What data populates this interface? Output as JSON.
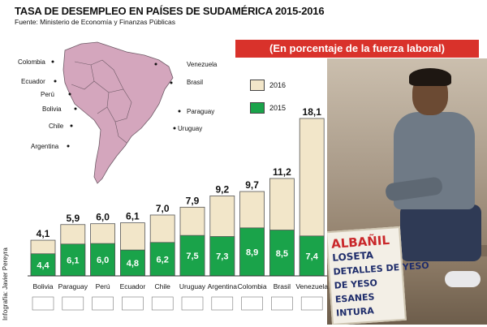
{
  "header": {
    "title": "TASA DE DESEMPLEO EN PAÍSES DE SUDAMÉRICA 2015-2016",
    "source": "Fuente: Ministerio de Economía y Finanzas Públicas",
    "credit": "Infografía: Javier Pereyra"
  },
  "subtitle": "(En porcentaje de la fuerza laboral)",
  "map": {
    "labels": [
      "Colombia",
      "Venezuela",
      "Ecuador",
      "Brasil",
      "Perú",
      "Paraguay",
      "Bolivia",
      "Uruguay",
      "Chile",
      "Argentina"
    ]
  },
  "photo": {
    "sign_lines": [
      "ALBAÑIL",
      "LOSETA",
      "DETALLES DE YESO",
      "DE YESO",
      "ESANES",
      "INTURA"
    ]
  },
  "colors": {
    "y2016": "#f2e6c9",
    "y2015": "#1aa34a",
    "accent": "#d9322b"
  },
  "chart_data": {
    "type": "bar",
    "title": "TASA DE DESEMPLEO EN PAÍSES DE SUDAMÉRICA 2015-2016",
    "subtitle": "(En porcentaje de la fuerza laboral)",
    "categories": [
      "Bolivia",
      "Paraguay",
      "Perú",
      "Ecuador",
      "Chile",
      "Uruguay",
      "Argentina",
      "Colombia",
      "Brasil",
      "Venezuela"
    ],
    "series": [
      {
        "name": "2016",
        "values": [
          4.1,
          5.9,
          6.0,
          6.1,
          7.0,
          7.9,
          9.2,
          9.7,
          11.2,
          18.1
        ],
        "labels": [
          "4,1",
          "5,9",
          "6,0",
          "6,1",
          "7,0",
          "7,9",
          "9,2",
          "9,7",
          "11,2",
          "18,1"
        ]
      },
      {
        "name": "2015",
        "values": [
          4.4,
          6.1,
          6.0,
          4.8,
          6.2,
          7.5,
          7.3,
          8.9,
          8.5,
          7.4
        ],
        "labels": [
          "4,4",
          "6,1",
          "6,0",
          "4,8",
          "6,2",
          "7,5",
          "7,3",
          "8,9",
          "8,5",
          "7,4"
        ]
      }
    ],
    "legend": {
      "entries": [
        "2016",
        "2015"
      ],
      "position": "top-center"
    },
    "grid": false,
    "ylim": [
      0,
      18.1
    ]
  }
}
